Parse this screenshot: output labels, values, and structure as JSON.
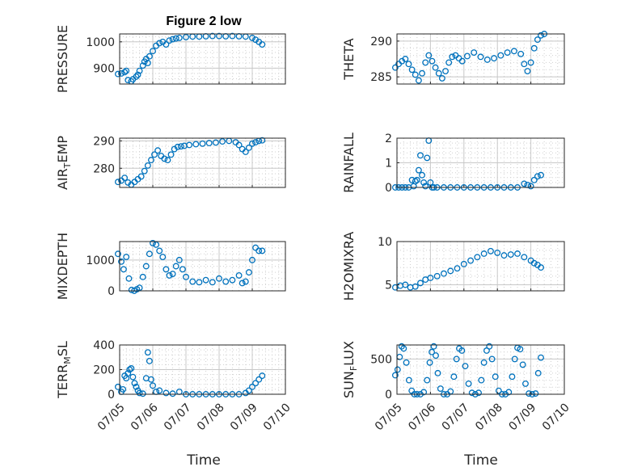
{
  "figure": {
    "title": "Figure 2 low",
    "xlabel": "Time"
  },
  "x_ticks": [
    "07/05",
    "07/06",
    "07/07",
    "07/08",
    "07/09",
    "07/10"
  ],
  "colors": {
    "marker": "#0072BD",
    "axis": "#262626",
    "grid": "#d0d0d0"
  },
  "chart_data": [
    {
      "type": "scatter",
      "ylabel": "PRESSURE",
      "ylabel_main": "PRESSURE",
      "xlim": [
        0,
        5
      ],
      "ylim": [
        840,
        1030
      ],
      "yticks": [
        900,
        1000
      ],
      "x": [
        -0.05,
        0.05,
        0.15,
        0.2,
        0.25,
        0.35,
        0.4,
        0.5,
        0.55,
        0.6,
        0.7,
        0.75,
        0.8,
        0.85,
        0.9,
        1.0,
        1.1,
        1.2,
        1.3,
        1.4,
        1.5,
        1.6,
        1.7,
        1.8,
        2.0,
        2.2,
        2.4,
        2.6,
        2.8,
        3.0,
        3.2,
        3.4,
        3.6,
        3.8,
        4.0,
        4.1,
        4.2,
        4.3
      ],
      "y": [
        878,
        880,
        885,
        890,
        855,
        850,
        858,
        868,
        875,
        890,
        910,
        925,
        935,
        920,
        945,
        965,
        985,
        995,
        1000,
        990,
        1005,
        1010,
        1013,
        1015,
        1018,
        1020,
        1020,
        1021,
        1022,
        1022,
        1021,
        1022,
        1021,
        1020,
        1015,
        1008,
        1000,
        990
      ]
    },
    {
      "type": "scatter",
      "ylabel": "THETA",
      "ylabel_main": "THETA",
      "xlim": [
        0,
        5
      ],
      "ylim": [
        284,
        291
      ],
      "yticks": [
        285,
        290
      ],
      "x": [
        -0.05,
        0.05,
        0.15,
        0.25,
        0.35,
        0.45,
        0.55,
        0.65,
        0.75,
        0.85,
        0.95,
        1.05,
        1.15,
        1.25,
        1.35,
        1.45,
        1.55,
        1.65,
        1.75,
        1.85,
        1.95,
        2.1,
        2.3,
        2.5,
        2.7,
        2.9,
        3.1,
        3.3,
        3.5,
        3.7,
        3.8,
        3.9,
        4.0,
        4.1,
        4.2,
        4.3,
        4.4
      ],
      "y": [
        286.3,
        286.8,
        287.2,
        287.5,
        286.8,
        286.0,
        285.3,
        284.5,
        285.5,
        287.0,
        288.0,
        287.2,
        286.3,
        285.5,
        284.8,
        285.8,
        287.0,
        287.8,
        288.0,
        287.6,
        287.2,
        287.9,
        288.4,
        287.8,
        287.4,
        287.6,
        288.0,
        288.4,
        288.6,
        288.2,
        286.8,
        285.8,
        287.0,
        289.0,
        290.2,
        290.8,
        291.0
      ]
    },
    {
      "type": "scatter",
      "ylabel": "AIR_TEMP",
      "ylabel_main": "AIR",
      "ylabel_sub": "T",
      "ylabel_tail": "EMP",
      "xlim": [
        0,
        5
      ],
      "ylim": [
        273,
        291
      ],
      "yticks": [
        280,
        290
      ],
      "x": [
        -0.05,
        0.05,
        0.15,
        0.25,
        0.35,
        0.45,
        0.55,
        0.65,
        0.75,
        0.85,
        0.95,
        1.05,
        1.15,
        1.25,
        1.35,
        1.45,
        1.55,
        1.65,
        1.75,
        1.85,
        1.95,
        2.1,
        2.3,
        2.5,
        2.7,
        2.9,
        3.1,
        3.3,
        3.5,
        3.6,
        3.7,
        3.8,
        3.9,
        4.0,
        4.1,
        4.2,
        4.3
      ],
      "y": [
        275.0,
        275.5,
        276.5,
        274.8,
        274.0,
        275.0,
        276.0,
        277.0,
        279.0,
        281.0,
        283.0,
        285.0,
        286.5,
        284.5,
        283.5,
        283.0,
        285.0,
        287.0,
        287.8,
        288.0,
        288.2,
        288.5,
        288.8,
        289.0,
        289.2,
        289.4,
        289.8,
        290.0,
        289.5,
        288.5,
        287.0,
        286.0,
        287.5,
        289.0,
        289.5,
        290.0,
        290.2
      ]
    },
    {
      "type": "scatter",
      "ylabel": "RAINFALL",
      "ylabel_main": "RAINFALL",
      "xlim": [
        0,
        5
      ],
      "ylim": [
        0,
        2
      ],
      "yticks": [
        0,
        1,
        2
      ],
      "x": [
        -0.05,
        0.05,
        0.15,
        0.25,
        0.35,
        0.45,
        0.5,
        0.55,
        0.6,
        0.65,
        0.7,
        0.75,
        0.8,
        0.85,
        0.9,
        0.95,
        1.0,
        1.05,
        1.1,
        1.2,
        1.4,
        1.6,
        1.8,
        2.0,
        2.2,
        2.4,
        2.6,
        2.8,
        3.0,
        3.2,
        3.4,
        3.6,
        3.8,
        3.9,
        4.0,
        4.1,
        4.2,
        4.3
      ],
      "y": [
        0,
        0,
        0,
        0,
        0,
        0.3,
        0.05,
        0.25,
        0.3,
        0.7,
        1.3,
        0.5,
        0.2,
        0.05,
        1.2,
        1.9,
        0.2,
        0,
        0,
        0,
        0,
        0,
        0,
        0,
        0,
        0,
        0,
        0,
        0,
        0,
        0,
        0,
        0.15,
        0.1,
        0.05,
        0.3,
        0.45,
        0.5
      ]
    },
    {
      "type": "scatter",
      "ylabel": "MIXDEPTH",
      "ylabel_main": "MIXDEPTH",
      "xlim": [
        0,
        5
      ],
      "ylim": [
        0,
        1600
      ],
      "yticks": [
        0,
        1000
      ],
      "x": [
        -0.05,
        0.05,
        0.12,
        0.2,
        0.28,
        0.36,
        0.44,
        0.52,
        0.6,
        0.7,
        0.8,
        0.9,
        1.0,
        1.1,
        1.2,
        1.3,
        1.4,
        1.5,
        1.6,
        1.7,
        1.8,
        1.9,
        2.0,
        2.2,
        2.4,
        2.6,
        2.8,
        3.0,
        3.2,
        3.4,
        3.6,
        3.7,
        3.8,
        3.9,
        4.0,
        4.1,
        4.2,
        4.3
      ],
      "y": [
        1200,
        950,
        700,
        1100,
        400,
        30,
        0,
        50,
        100,
        450,
        800,
        1200,
        1550,
        1500,
        1300,
        1100,
        700,
        500,
        550,
        800,
        1000,
        700,
        450,
        300,
        280,
        350,
        280,
        400,
        300,
        350,
        500,
        250,
        300,
        600,
        1000,
        1400,
        1300,
        1300
      ]
    },
    {
      "type": "scatter",
      "ylabel": "H2OMIXRA",
      "ylabel_main": "H2OMIXRA",
      "xlim": [
        0,
        5
      ],
      "ylim": [
        4.3,
        10
      ],
      "yticks": [
        5,
        10
      ],
      "x": [
        -0.05,
        0.1,
        0.25,
        0.4,
        0.55,
        0.7,
        0.85,
        1.0,
        1.2,
        1.4,
        1.6,
        1.8,
        2.0,
        2.2,
        2.4,
        2.6,
        2.8,
        3.0,
        3.2,
        3.4,
        3.6,
        3.8,
        4.0,
        4.1,
        4.2,
        4.3
      ],
      "y": [
        4.7,
        4.9,
        5.0,
        4.7,
        4.8,
        5.2,
        5.6,
        5.8,
        6.0,
        6.3,
        6.6,
        6.9,
        7.4,
        7.8,
        8.2,
        8.6,
        8.9,
        8.7,
        8.4,
        8.5,
        8.6,
        8.2,
        7.8,
        7.5,
        7.3,
        7.0
      ]
    },
    {
      "type": "scatter",
      "ylabel": "TERR_MSL",
      "ylabel_main": "TERR",
      "ylabel_sub": "M",
      "ylabel_tail": "SL",
      "xlim": [
        0,
        5
      ],
      "ylim": [
        0,
        400
      ],
      "yticks": [
        0,
        200,
        400
      ],
      "x": [
        -0.05,
        0.05,
        0.1,
        0.15,
        0.2,
        0.25,
        0.3,
        0.35,
        0.4,
        0.45,
        0.5,
        0.55,
        0.6,
        0.7,
        0.8,
        0.85,
        0.9,
        0.95,
        1.0,
        1.1,
        1.2,
        1.4,
        1.6,
        1.8,
        2.0,
        2.2,
        2.4,
        2.6,
        2.8,
        3.0,
        3.2,
        3.4,
        3.6,
        3.8,
        3.9,
        4.0,
        4.1,
        4.2,
        4.3
      ],
      "y": [
        60,
        20,
        40,
        150,
        130,
        170,
        200,
        210,
        140,
        90,
        60,
        30,
        10,
        5,
        130,
        340,
        270,
        120,
        70,
        20,
        30,
        10,
        5,
        20,
        0,
        0,
        0,
        0,
        0,
        0,
        0,
        0,
        0,
        10,
        30,
        60,
        90,
        120,
        150
      ]
    },
    {
      "type": "scatter",
      "ylabel": "SUN_FLUX",
      "ylabel_main": "SUN",
      "ylabel_sub": "F",
      "ylabel_tail": "LUX",
      "xlim": [
        0,
        5
      ],
      "ylim": [
        0,
        700
      ],
      "yticks": [
        0,
        500
      ],
      "x": [
        -0.05,
        0.02,
        0.08,
        0.14,
        0.2,
        0.28,
        0.36,
        0.44,
        0.52,
        0.6,
        0.7,
        0.8,
        0.9,
        0.98,
        1.04,
        1.1,
        1.16,
        1.22,
        1.3,
        1.4,
        1.5,
        1.6,
        1.7,
        1.78,
        1.86,
        1.94,
        2.04,
        2.14,
        2.24,
        2.34,
        2.44,
        2.52,
        2.6,
        2.68,
        2.76,
        2.84,
        2.94,
        3.04,
        3.14,
        3.24,
        3.34,
        3.44,
        3.52,
        3.6,
        3.68,
        3.76,
        3.84,
        3.94,
        4.04,
        4.14,
        4.22,
        4.3
      ],
      "y": [
        270,
        350,
        530,
        680,
        650,
        450,
        200,
        50,
        0,
        0,
        0,
        30,
        200,
        450,
        600,
        680,
        550,
        300,
        80,
        0,
        0,
        40,
        250,
        500,
        650,
        620,
        400,
        150,
        20,
        0,
        20,
        200,
        450,
        620,
        680,
        500,
        250,
        50,
        0,
        0,
        30,
        250,
        500,
        660,
        640,
        420,
        150,
        10,
        0,
        10,
        300,
        520
      ]
    }
  ]
}
